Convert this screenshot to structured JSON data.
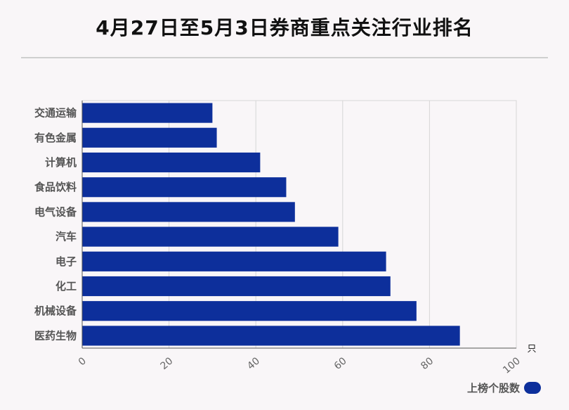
{
  "title": "4月27日至5月3日券商重点关注行业排名",
  "chart_data": {
    "type": "bar",
    "orientation": "horizontal",
    "categories": [
      "交通运输",
      "有色金属",
      "计算机",
      "食品饮料",
      "电气设备",
      "汽车",
      "电子",
      "化工",
      "机械设备",
      "医药生物"
    ],
    "series": [
      {
        "name": "上榜个股数",
        "values": [
          30,
          31,
          41,
          47,
          49,
          59,
          70,
          71,
          77,
          87
        ]
      }
    ],
    "xlim": [
      0,
      100
    ],
    "xticks": [
      0,
      20,
      40,
      60,
      80,
      100
    ],
    "unit": "只",
    "bar_color": "#0d2f9b",
    "grid": true,
    "legend_position": "bottom-right"
  }
}
